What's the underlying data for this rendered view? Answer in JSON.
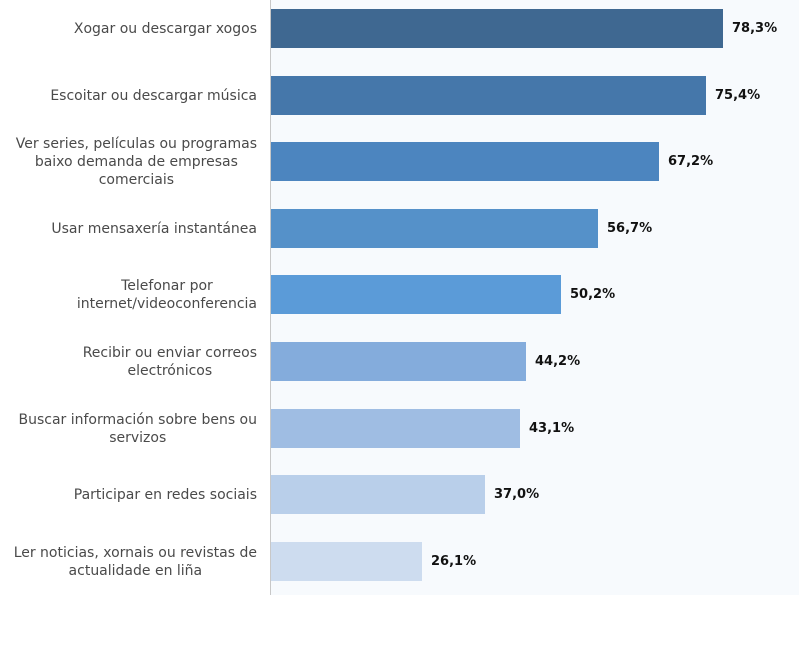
{
  "chart_data": {
    "type": "bar",
    "orientation": "horizontal",
    "title": "",
    "xlabel": "",
    "ylabel": "",
    "xlim": [
      0,
      100
    ],
    "grid": false,
    "legend": "none",
    "categories": [
      "Xogar ou descargar xogos",
      "Escoitar ou descargar música",
      "Ver series, películas ou programas baixo demanda de empresas comerciais",
      "Usar mensaxería instantánea",
      "Telefonar por internet/videoconferencia",
      "Recibir ou enviar correos electrónicos",
      "Buscar información sobre bens ou servizos",
      "Participar en redes sociais",
      "Ler noticias, xornais ou revistas de actualidade en liña"
    ],
    "label_lines": [
      [
        "Xogar ou descargar xogos"
      ],
      [
        "Escoitar ou descargar música"
      ],
      [
        "Ver series, películas ou programas",
        "baixo demanda de empresas",
        "comerciais"
      ],
      [
        "Usar mensaxería instantánea"
      ],
      [
        "Telefonar por",
        "internet/videoconferencia"
      ],
      [
        "Recibir ou enviar correos",
        "electrónicos"
      ],
      [
        "Buscar información sobre bens ou",
        "servizos"
      ],
      [
        "Participar en redes sociais"
      ],
      [
        "Ler noticias, xornais ou revistas de",
        "actualidade en liña"
      ]
    ],
    "values": [
      78.3,
      75.4,
      67.2,
      56.7,
      50.2,
      44.2,
      43.1,
      37.0,
      26.1
    ],
    "value_labels": [
      "78,3%",
      "75,4%",
      "67,2%",
      "56,7%",
      "50,2%",
      "44,2%",
      "43,1%",
      "37,0%",
      "26,1%"
    ],
    "colors": [
      "#3f6891",
      "#4577aa",
      "#4c85bf",
      "#5591c9",
      "#5b9bd8",
      "#84acdc",
      "#9fbde3",
      "#b9cfea",
      "#cddcef"
    ]
  }
}
